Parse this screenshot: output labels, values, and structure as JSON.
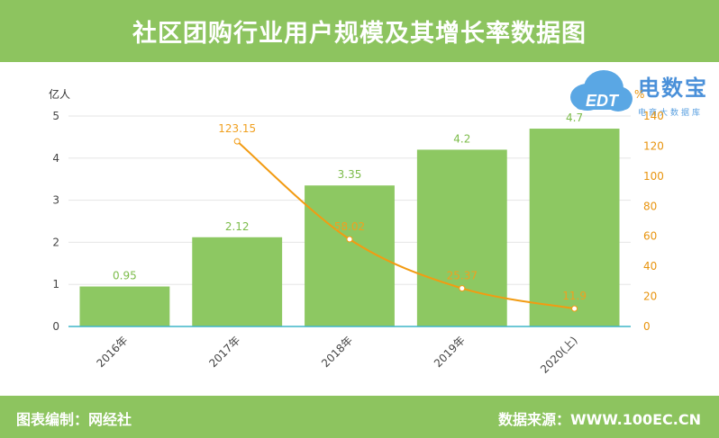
{
  "header": {
    "title": "社区团购行业用户规模及其增长率数据图"
  },
  "footer": {
    "left": "图表编制：网经社",
    "right": "数据来源：WWW.100EC.CN"
  },
  "logo": {
    "name": "电数宝",
    "sub": "电商大数据库",
    "mark": "EDT"
  },
  "chart_data": {
    "type": "bar",
    "categories": [
      "2016年",
      "2017年",
      "2018年",
      "2019年",
      "2020(上)"
    ],
    "series": [
      {
        "values": [
          0.95,
          2.12,
          3.35,
          4.2,
          4.7
        ],
        "color": "#8dc862",
        "axis": "left"
      },
      {
        "values": [
          null,
          123.15,
          58.02,
          25.37,
          11.9
        ],
        "color": "#f29b12",
        "axis": "right",
        "render": "line"
      }
    ],
    "y_left": {
      "unit": "亿人",
      "range": [
        0,
        5
      ],
      "ticks": [
        0,
        1,
        2,
        3,
        4,
        5
      ]
    },
    "y_right": {
      "unit": "%",
      "range": [
        0,
        140
      ],
      "ticks": [
        0,
        20,
        40,
        60,
        80,
        100,
        120,
        140
      ]
    },
    "bar_labels": [
      "0.95",
      "2.12",
      "3.35",
      "4.2",
      "4.7"
    ],
    "line_labels": [
      "",
      "123.15",
      "58.02",
      "25.37",
      "11.9"
    ],
    "grid": true,
    "legend": "none"
  }
}
